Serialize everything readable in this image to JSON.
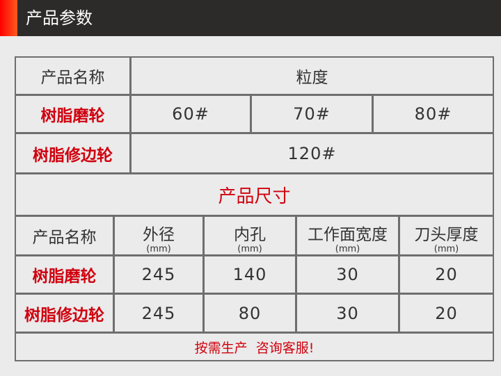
{
  "header": {
    "title": "产品参数",
    "accent_color": "#ff2a0f",
    "bg_color": "#2d2b29"
  },
  "grit": {
    "name_header": "产品名称",
    "grit_header": "粒度",
    "rows": [
      {
        "name": "树脂磨轮",
        "values": [
          "60#",
          "70#",
          "80#"
        ]
      },
      {
        "name": "树脂修边轮",
        "value": "120#"
      }
    ]
  },
  "size": {
    "title": "产品尺寸",
    "headers": [
      {
        "label": "产品名称"
      },
      {
        "label": "外径",
        "unit": "(mm)"
      },
      {
        "label": "内孔",
        "unit": "(mm)"
      },
      {
        "label": "工作面宽度",
        "unit": "(mm)"
      },
      {
        "label": "刀头厚度",
        "unit": "(mm)"
      }
    ],
    "rows": [
      {
        "name": "树脂磨轮",
        "values": [
          "245",
          "140",
          "30",
          "20"
        ]
      },
      {
        "name": "树脂修边轮",
        "values": [
          "245",
          "80",
          "30",
          "20"
        ]
      }
    ]
  },
  "note": "按需生产  咨询客服!",
  "highlight_color": "#d0000e"
}
